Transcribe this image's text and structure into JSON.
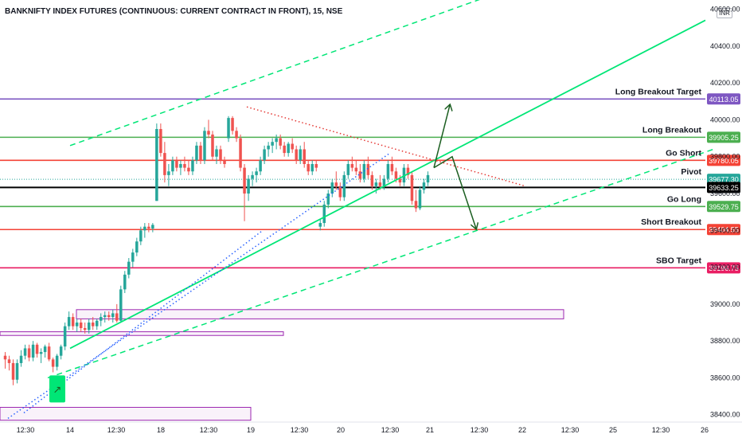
{
  "chart_data": {
    "type": "candlestick",
    "title": "BANKNIFTY INDEX FUTURES (CONTINUOUS: CURRENT CONTRACT IN FRONT), 15, NSE",
    "currency": "INR",
    "ylim": [
      38360,
      40650
    ],
    "y_ticks": [
      "40600.00",
      "40400.00",
      "40200.00",
      "40000.00",
      "39800.00",
      "39600.00",
      "39400.00",
      "39200.00",
      "39000.00",
      "38800.00",
      "38600.00",
      "38400.00"
    ],
    "x_labels": [
      "12:30",
      "14",
      "12:30",
      "18",
      "12:30",
      "19",
      "12:30",
      "20",
      "12:30",
      "21",
      "12:30",
      "22",
      "12:30",
      "25",
      "12:30",
      "26"
    ],
    "levels": [
      {
        "name": "Long Breakout Target",
        "price": 40113.05,
        "value_label": "40113.05",
        "color": "#7e57c2"
      },
      {
        "name": "Long Breakout",
        "price": 39905.25,
        "value_label": "39905.25",
        "color": "#4caf50"
      },
      {
        "name": "Go Short",
        "price": 39780.05,
        "value_label": "39780.05",
        "color": "#f44336"
      },
      {
        "name": "Pivot",
        "price": 39677.3,
        "value_label": "39677.30",
        "color": "#26a69a"
      },
      {
        "name": "",
        "price": 39633.25,
        "value_label": "39633.25",
        "color": "#000000"
      },
      {
        "name": "Go Long",
        "price": 39529.75,
        "value_label": "39529.75",
        "color": "#4caf50"
      },
      {
        "name": "Short Breakout",
        "price": 39404.55,
        "value_label": "39404.55",
        "color": "#f44336"
      },
      {
        "name": "SBO Target",
        "price": 39196.75,
        "value_label": "39196.75",
        "color": "#e91e63"
      }
    ],
    "candles": [
      [
        38720,
        38740,
        38650,
        38700
      ],
      [
        38700,
        38720,
        38640,
        38680
      ],
      [
        38680,
        38700,
        38560,
        38590
      ],
      [
        38590,
        38700,
        38570,
        38680
      ],
      [
        38680,
        38750,
        38660,
        38720
      ],
      [
        38720,
        38780,
        38700,
        38760
      ],
      [
        38760,
        38780,
        38690,
        38710
      ],
      [
        38710,
        38800,
        38690,
        38780
      ],
      [
        38780,
        38790,
        38710,
        38730
      ],
      [
        38730,
        38760,
        38680,
        38740
      ],
      [
        38740,
        38780,
        38710,
        38770
      ],
      [
        38770,
        38790,
        38690,
        38700
      ],
      [
        38700,
        38710,
        38630,
        38660
      ],
      [
        38660,
        38730,
        38640,
        38720
      ],
      [
        38720,
        38780,
        38700,
        38770
      ],
      [
        38770,
        38900,
        38750,
        38880
      ],
      [
        38880,
        38960,
        38860,
        38930
      ],
      [
        38930,
        38950,
        38860,
        38880
      ],
      [
        38880,
        38920,
        38850,
        38900
      ],
      [
        38900,
        38920,
        38850,
        38870
      ],
      [
        38870,
        38900,
        38840,
        38860
      ],
      [
        38860,
        38920,
        38840,
        38900
      ],
      [
        38900,
        38930,
        38860,
        38880
      ],
      [
        38880,
        38920,
        38860,
        38910
      ],
      [
        38910,
        38950,
        38880,
        38930
      ],
      [
        38930,
        38960,
        38900,
        38940
      ],
      [
        38940,
        38960,
        38910,
        38930
      ],
      [
        38930,
        38970,
        38900,
        38950
      ],
      [
        38950,
        39000,
        38900,
        38910
      ],
      [
        38910,
        39100,
        38900,
        39080
      ],
      [
        39080,
        39180,
        39060,
        39160
      ],
      [
        39160,
        39250,
        39140,
        39230
      ],
      [
        39230,
        39300,
        39200,
        39280
      ],
      [
        39280,
        39360,
        39260,
        39340
      ],
      [
        39340,
        39420,
        39320,
        39400
      ],
      [
        39400,
        39440,
        39360,
        39420
      ],
      [
        39420,
        39440,
        39390,
        39410
      ],
      [
        39410,
        39440,
        39390,
        39430
      ],
      [
        39560,
        39980,
        39560,
        39950
      ],
      [
        39950,
        39980,
        39800,
        39820
      ],
      [
        39820,
        39880,
        39660,
        39700
      ],
      [
        39700,
        39760,
        39640,
        39720
      ],
      [
        39720,
        39800,
        39700,
        39780
      ],
      [
        39780,
        39800,
        39720,
        39740
      ],
      [
        39740,
        39780,
        39700,
        39760
      ],
      [
        39760,
        39800,
        39720,
        39740
      ],
      [
        39740,
        39780,
        39700,
        39720
      ],
      [
        39720,
        39800,
        39700,
        39780
      ],
      [
        39780,
        39880,
        39760,
        39860
      ],
      [
        39860,
        39880,
        39760,
        39780
      ],
      [
        39780,
        39960,
        39760,
        39940
      ],
      [
        39940,
        40000,
        39900,
        39920
      ],
      [
        39920,
        39940,
        39780,
        39800
      ],
      [
        39800,
        39860,
        39760,
        39840
      ],
      [
        39840,
        39860,
        39760,
        39780
      ],
      [
        39780,
        39800,
        39740,
        39760
      ],
      [
        39900,
        40020,
        39880,
        40010
      ],
      [
        40010,
        40020,
        39920,
        39940
      ],
      [
        39940,
        39960,
        39880,
        39900
      ],
      [
        39900,
        39920,
        39720,
        39740
      ],
      [
        39740,
        39760,
        39450,
        39600
      ],
      [
        39600,
        39700,
        39560,
        39680
      ],
      [
        39680,
        39720,
        39640,
        39700
      ],
      [
        39700,
        39740,
        39660,
        39720
      ],
      [
        39720,
        39800,
        39700,
        39780
      ],
      [
        39780,
        39860,
        39760,
        39840
      ],
      [
        39840,
        39880,
        39800,
        39860
      ],
      [
        39860,
        39900,
        39820,
        39880
      ],
      [
        39880,
        39920,
        39840,
        39900
      ],
      [
        39900,
        39920,
        39840,
        39860
      ],
      [
        39860,
        39880,
        39800,
        39820
      ],
      [
        39820,
        39880,
        39800,
        39870
      ],
      [
        39870,
        39900,
        39820,
        39840
      ],
      [
        39840,
        39860,
        39760,
        39780
      ],
      [
        39780,
        39860,
        39760,
        39840
      ],
      [
        39840,
        39880,
        39740,
        39760
      ],
      [
        39760,
        39780,
        39700,
        39720
      ],
      [
        39720,
        39780,
        39700,
        39760
      ],
      [
        39760,
        39780,
        39720,
        39740
      ],
      [
        39420,
        39460,
        39400,
        39440
      ],
      [
        39440,
        39560,
        39420,
        39540
      ],
      [
        39540,
        39620,
        39520,
        39600
      ],
      [
        39600,
        39680,
        39580,
        39660
      ],
      [
        39660,
        39720,
        39620,
        39640
      ],
      [
        39640,
        39660,
        39560,
        39580
      ],
      [
        39580,
        39720,
        39560,
        39700
      ],
      [
        39700,
        39780,
        39680,
        39760
      ],
      [
        39760,
        39800,
        39720,
        39740
      ],
      [
        39740,
        39780,
        39700,
        39720
      ],
      [
        39720,
        39760,
        39660,
        39680
      ],
      [
        39680,
        39780,
        39660,
        39760
      ],
      [
        39760,
        39800,
        39680,
        39700
      ],
      [
        39700,
        39720,
        39620,
        39640
      ],
      [
        39640,
        39680,
        39600,
        39660
      ],
      [
        39660,
        39700,
        39620,
        39640
      ],
      [
        39640,
        39700,
        39620,
        39680
      ],
      [
        39680,
        39780,
        39660,
        39760
      ],
      [
        39760,
        39800,
        39700,
        39720
      ],
      [
        39720,
        39740,
        39660,
        39680
      ],
      [
        39680,
        39700,
        39640,
        39660
      ],
      [
        39660,
        39760,
        39640,
        39740
      ],
      [
        39740,
        39760,
        39680,
        39700
      ],
      [
        39700,
        39720,
        39540,
        39560
      ],
      [
        39560,
        39620,
        39500,
        39520
      ],
      [
        39520,
        39640,
        39510,
        39620
      ],
      [
        39620,
        39680,
        39600,
        39660
      ],
      [
        39660,
        39720,
        39640,
        39700
      ]
    ],
    "trend_lines": [
      {
        "style": "solid",
        "color": "#00e676",
        "from": [
          88,
          38760
        ],
        "to": [
          886,
          40540
        ]
      },
      {
        "style": "dashed",
        "color": "#00e676",
        "from": [
          88,
          39860
        ],
        "to": [
          620,
          40680
        ]
      },
      {
        "style": "dashed",
        "color": "#00e676",
        "from": [
          60,
          38600
        ],
        "to": [
          896,
          39840
        ]
      },
      {
        "style": "dotted",
        "color": "#2962ff",
        "from": [
          10,
          38380
        ],
        "to": [
          490,
          39820
        ]
      },
      {
        "style": "dotted",
        "color": "#2962ff",
        "from": [
          30,
          38410
        ],
        "to": [
          330,
          39400
        ]
      },
      {
        "style": "dotted",
        "color": "#e53935",
        "from": [
          310,
          40070
        ],
        "to": [
          660,
          39640
        ]
      }
    ],
    "projection": {
      "color": "#1b5e20",
      "points": [
        [
          545,
          39740
        ],
        [
          565,
          40080
        ]
      ],
      "points2": [
        [
          545,
          39740
        ],
        [
          568,
          39800
        ],
        [
          598,
          39410
        ]
      ]
    },
    "zones": [
      {
        "color": "#9c27b0",
        "from": [
          96,
          38970
        ],
        "to": [
          708,
          38920
        ]
      },
      {
        "color": "#9c27b0",
        "from": [
          0,
          38850
        ],
        "to": [
          356,
          38830
        ]
      },
      {
        "color": "#9c27b0",
        "from": [
          0,
          38440
        ],
        "to": [
          315,
          38370
        ]
      }
    ],
    "marker": {
      "color": "#00e676",
      "glyph": "↗",
      "x": 72,
      "y": 38540
    }
  }
}
